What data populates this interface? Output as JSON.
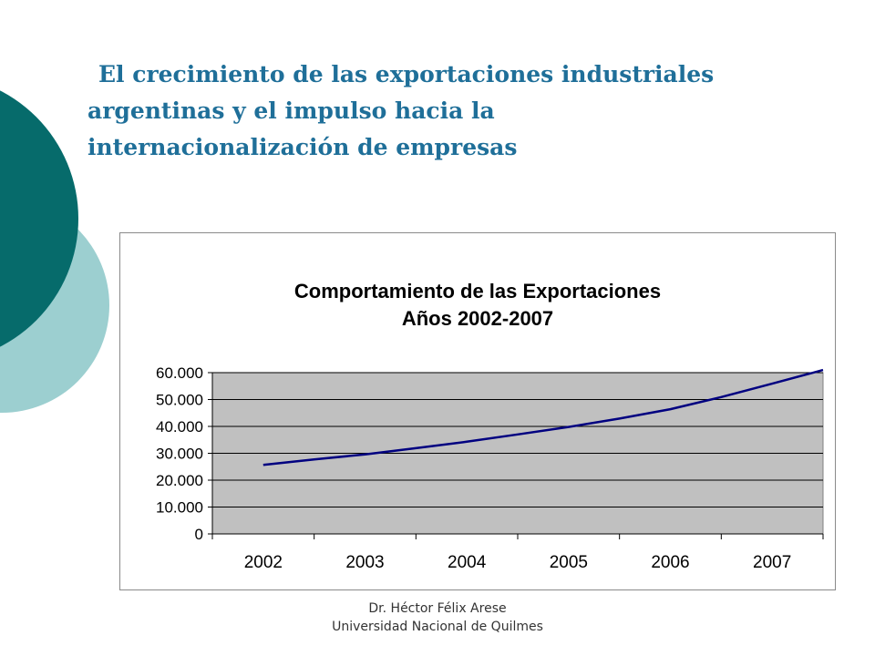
{
  "slide": {
    "title_line1": "El crecimiento de las exportaciones industriales",
    "title_line2": "argentinas y el impulso hacia la",
    "title_line3": "internacionalización de empresas",
    "footer_author": "Dr. Héctor Félix Arese",
    "footer_institution": "Universidad Nacional de Quilmes",
    "colors": {
      "title": "#1f6f99",
      "decor_dark": "#066b6b",
      "decor_light": "#9ccfd0",
      "plot_area": "#c0c0c0",
      "line": "#000080"
    }
  },
  "chart_data": {
    "type": "line",
    "title": "Comportamiento de las Exportaciones",
    "subtitle": "Años 2002-2007",
    "categories": [
      "2002",
      "2003",
      "2004",
      "2005",
      "2006",
      "2007"
    ],
    "x": [
      2002,
      2002.5,
      2003,
      2003.5,
      2004,
      2004.5,
      2005,
      2005.5,
      2006,
      2006.5,
      2007,
      2007.5
    ],
    "series": [
      {
        "values": [
          25700,
          27700,
          29600,
          31900,
          34300,
          37000,
          39800,
          42900,
          46400,
          50900,
          55900,
          61000
        ]
      }
    ],
    "yticks": [
      "0",
      "10.000",
      "20.000",
      "30.000",
      "40.000",
      "50.000",
      "60.000"
    ],
    "ylim": [
      0,
      60000
    ],
    "xlabel": "",
    "ylabel": "",
    "grid": true,
    "legend": "none"
  }
}
